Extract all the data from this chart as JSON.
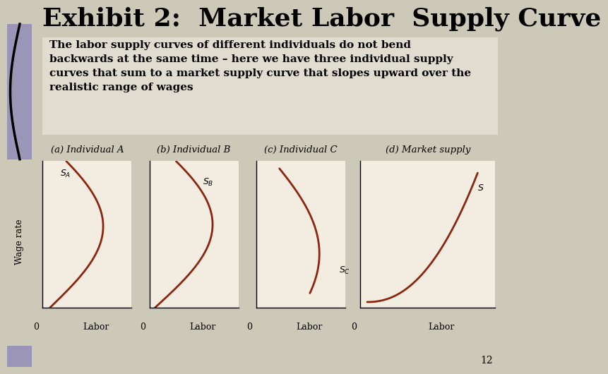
{
  "title": "Exhibit 2:  Market Labor  Supply Curve",
  "subtitle_lines": [
    "The labor supply curves of different individuals do not bend",
    "backwards at the same time – here we have three individual supply",
    "curves that sum to a market supply curve that slopes upward over the",
    "realistic range of wages"
  ],
  "panel_labels": [
    "(a) Individual A",
    "(b) Individual B",
    "(c) Individual C",
    "(d) Market supply"
  ],
  "curve_labels_tex": [
    "$S_A$",
    "$S_B$",
    "$S_C$",
    "$S$"
  ],
  "xlabel": "Labor",
  "ylabel": "Wage rate",
  "bg_color": "#ccc9b8",
  "subtitle_bg": "#e0ddd0",
  "panel_bg": "#f2ede0",
  "curve_color": "#8b2510",
  "page_number": "12",
  "title_fontsize": 26,
  "subtitle_fontsize": 11,
  "panel_label_fontsize": 9.5,
  "purple_color": "#9b96b8"
}
